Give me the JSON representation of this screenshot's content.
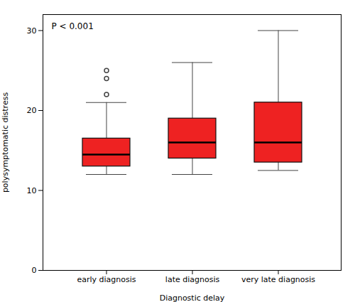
{
  "chart_data": {
    "type": "box",
    "xlabel": "Diagnostic delay",
    "ylabel": "polysymptomatic distress",
    "annotation": "P < 0.001",
    "categories": [
      "early diagnosis",
      "late diagnosis",
      "very late diagnosis"
    ],
    "boxes": [
      {
        "q1": 13.0,
        "median": 14.5,
        "q3": 16.5,
        "whisker_low": 12.0,
        "whisker_high": 21.0,
        "outliers": [
          22.0,
          24.0,
          25.0
        ]
      },
      {
        "q1": 14.0,
        "median": 16.0,
        "q3": 19.0,
        "whisker_low": 12.0,
        "whisker_high": 26.0,
        "outliers": []
      },
      {
        "q1": 13.5,
        "median": 16.0,
        "q3": 21.0,
        "whisker_low": 12.5,
        "whisker_high": 30.0,
        "outliers": []
      }
    ],
    "color": "#ee2222",
    "ylim": [
      0,
      32
    ],
    "yticks": [
      0,
      10,
      20,
      30
    ],
    "grid": false
  }
}
